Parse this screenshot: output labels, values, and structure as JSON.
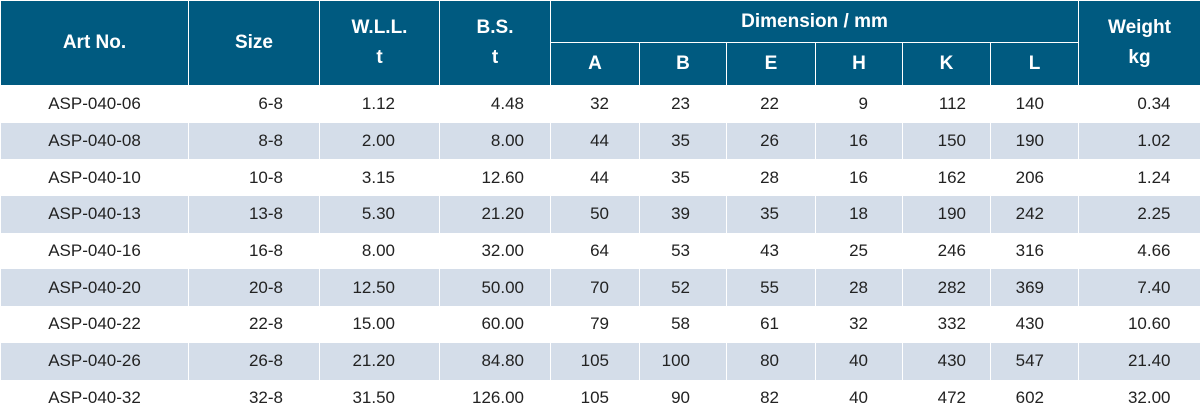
{
  "headers": {
    "art_no": "Art No.",
    "size": "Size",
    "wll": "W.L.L.",
    "wll_unit": "t",
    "bs": "B.S.",
    "bs_unit": "t",
    "dimension": "Dimension / mm",
    "weight": "Weight",
    "weight_unit": "kg",
    "dims": [
      "A",
      "B",
      "E",
      "H",
      "K",
      "L"
    ]
  },
  "rows": [
    {
      "art": "ASP-040-06",
      "size": "6-8",
      "wll": "1.12",
      "bs": "4.48",
      "a": "32",
      "b": "23",
      "e": "22",
      "h": "9",
      "k": "112",
      "l": "140",
      "weight": "0.34"
    },
    {
      "art": "ASP-040-08",
      "size": "8-8",
      "wll": "2.00",
      "bs": "8.00",
      "a": "44",
      "b": "35",
      "e": "26",
      "h": "16",
      "k": "150",
      "l": "190",
      "weight": "1.02"
    },
    {
      "art": "ASP-040-10",
      "size": "10-8",
      "wll": "3.15",
      "bs": "12.60",
      "a": "44",
      "b": "35",
      "e": "28",
      "h": "16",
      "k": "162",
      "l": "206",
      "weight": "1.24"
    },
    {
      "art": "ASP-040-13",
      "size": "13-8",
      "wll": "5.30",
      "bs": "21.20",
      "a": "50",
      "b": "39",
      "e": "35",
      "h": "18",
      "k": "190",
      "l": "242",
      "weight": "2.25"
    },
    {
      "art": "ASP-040-16",
      "size": "16-8",
      "wll": "8.00",
      "bs": "32.00",
      "a": "64",
      "b": "53",
      "e": "43",
      "h": "25",
      "k": "246",
      "l": "316",
      "weight": "4.66"
    },
    {
      "art": "ASP-040-20",
      "size": "20-8",
      "wll": "12.50",
      "bs": "50.00",
      "a": "70",
      "b": "52",
      "e": "55",
      "h": "28",
      "k": "282",
      "l": "369",
      "weight": "7.40"
    },
    {
      "art": "ASP-040-22",
      "size": "22-8",
      "wll": "15.00",
      "bs": "60.00",
      "a": "79",
      "b": "58",
      "e": "61",
      "h": "32",
      "k": "332",
      "l": "430",
      "weight": "10.60"
    },
    {
      "art": "ASP-040-26",
      "size": "26-8",
      "wll": "21.20",
      "bs": "84.80",
      "a": "105",
      "b": "100",
      "e": "80",
      "h": "40",
      "k": "430",
      "l": "547",
      "weight": "21.40"
    },
    {
      "art": "ASP-040-32",
      "size": "32-8",
      "wll": "31.50",
      "bs": "126.00",
      "a": "105",
      "b": "90",
      "e": "82",
      "h": "40",
      "k": "472",
      "l": "602",
      "weight": "32.00"
    }
  ],
  "colors": {
    "header_bg": "#005a80",
    "stripe": "#d4dde9"
  }
}
